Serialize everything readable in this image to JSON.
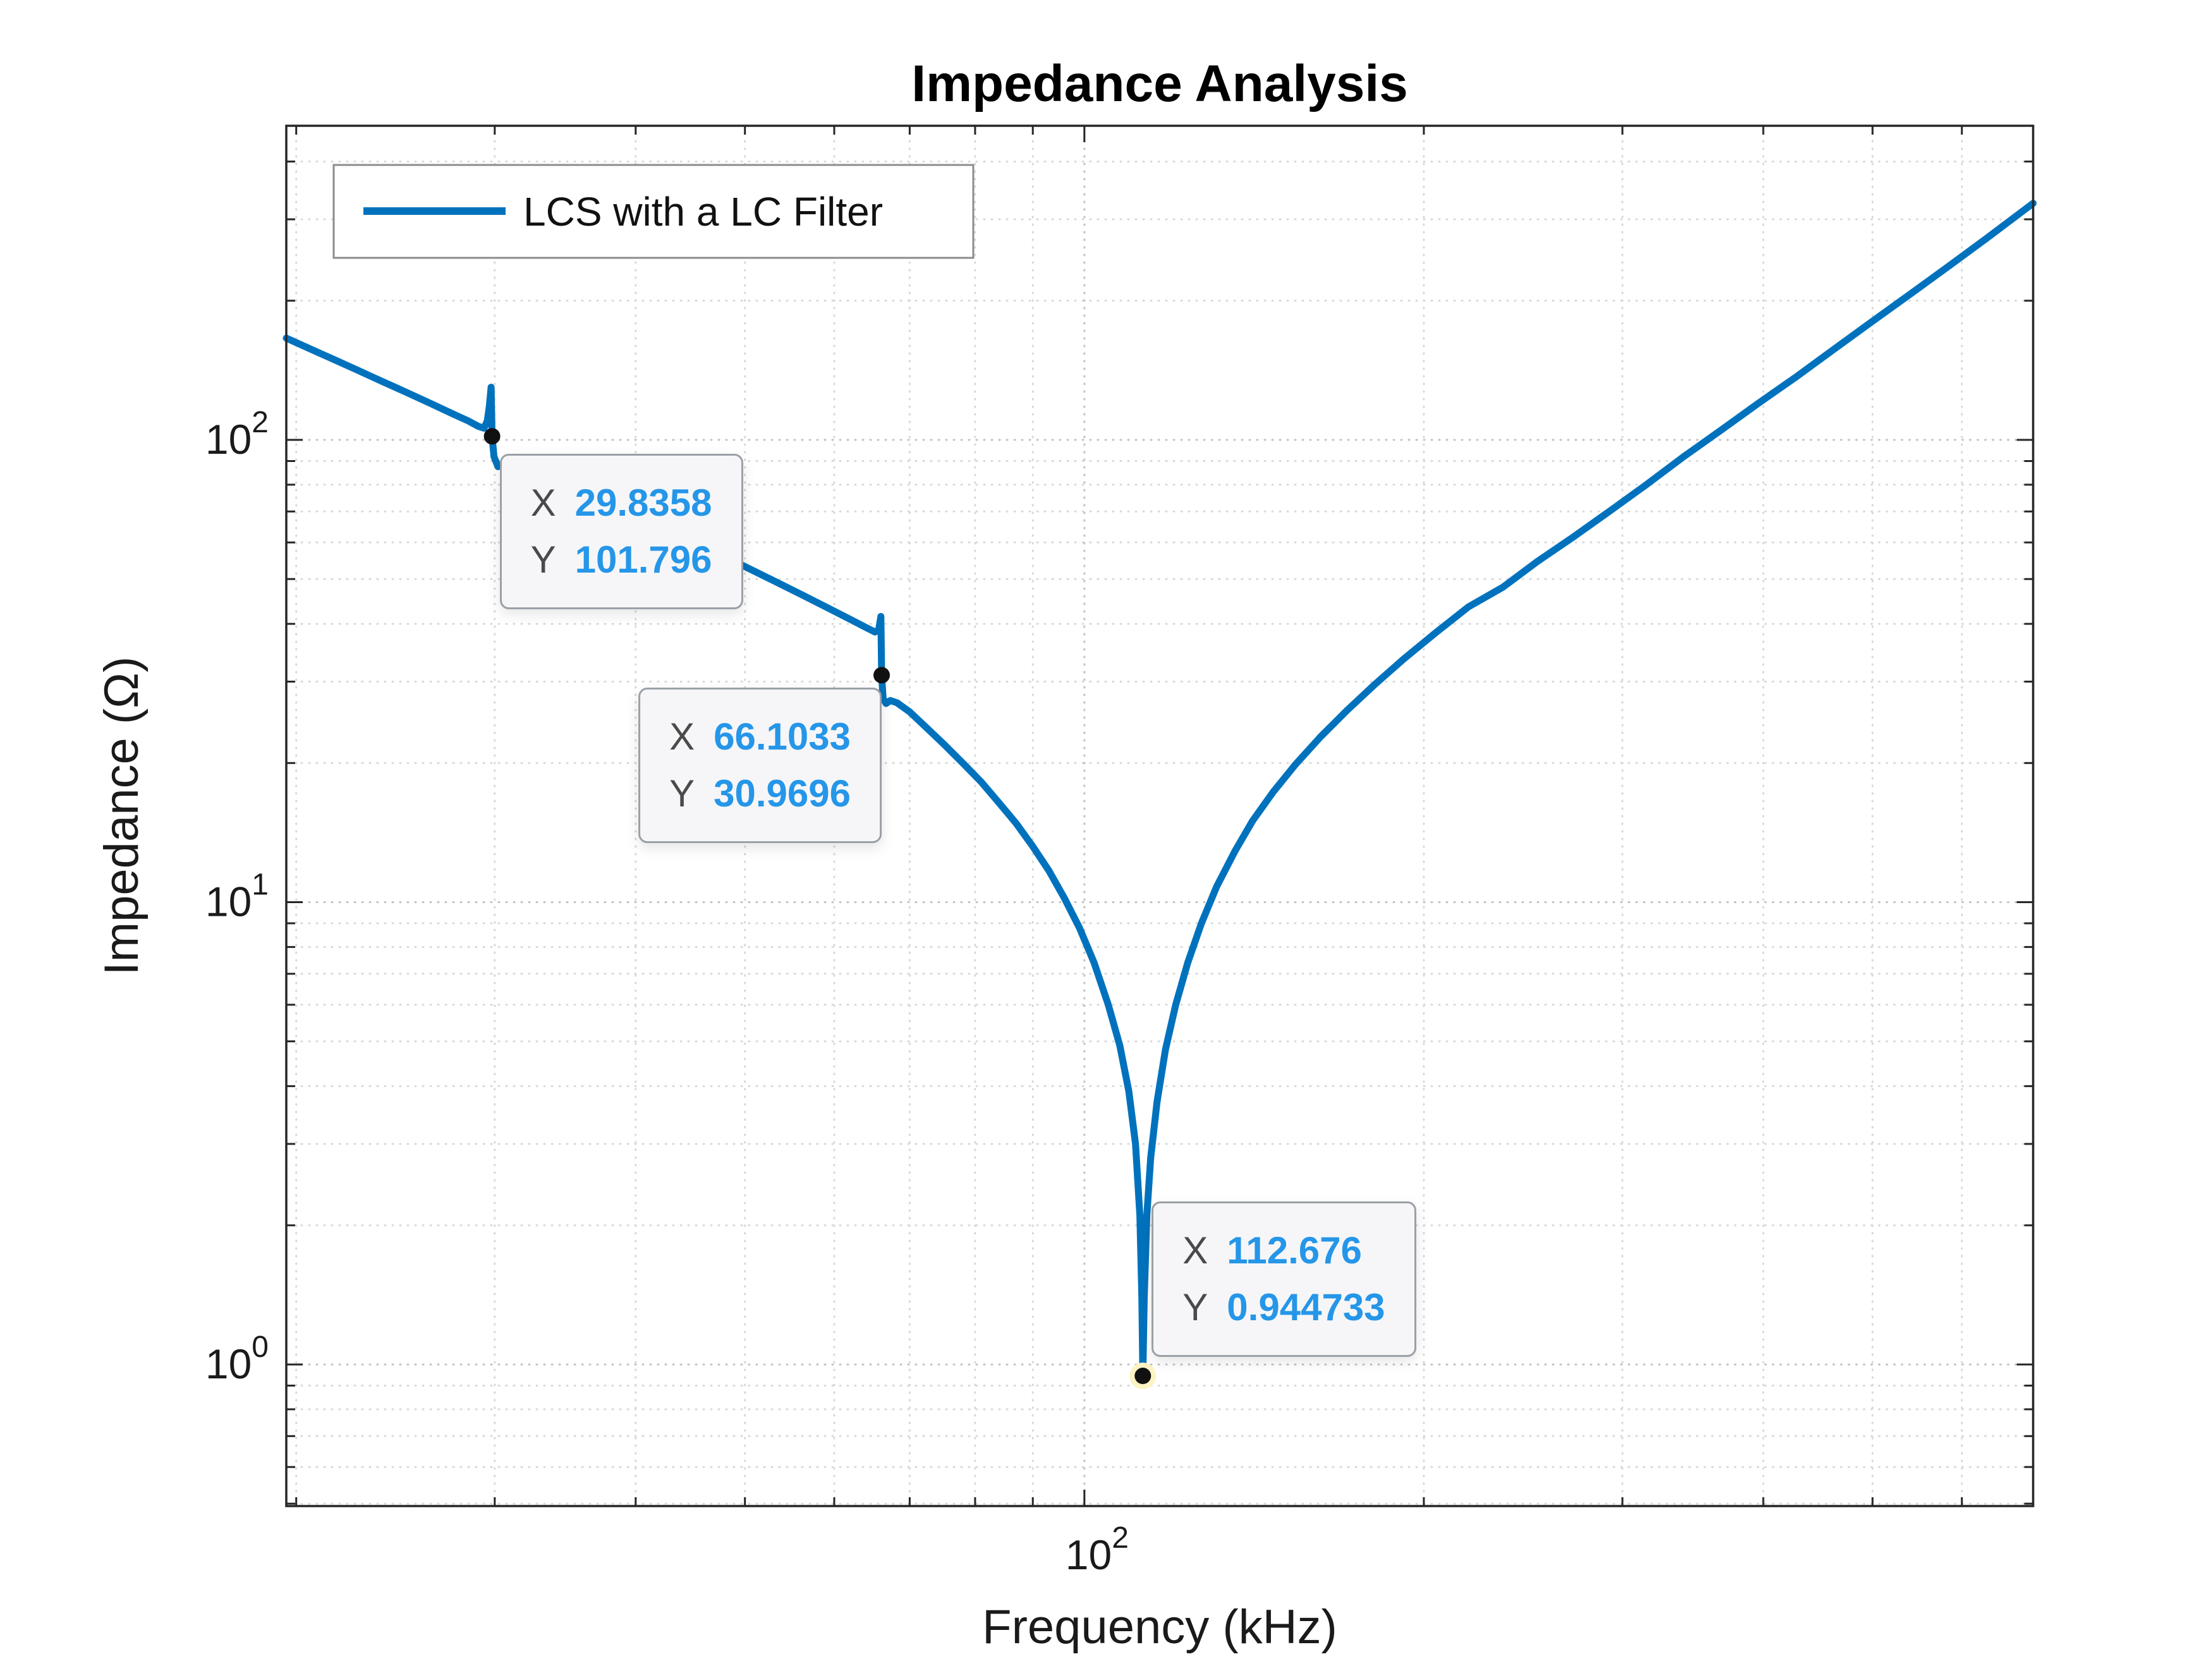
{
  "chart_data": {
    "type": "line",
    "title": "Impedance Analysis",
    "xlabel": "Frequency (kHz)",
    "ylabel": "Impedance (Ω)",
    "x_scale": "log",
    "y_scale": "log",
    "xlim": [
      19.6,
      694
    ],
    "ylim": [
      0.494,
      478
    ],
    "grid": true,
    "minor_grid": true,
    "legend": {
      "position": "northwest"
    },
    "colors": {
      "line": "#0072BD",
      "datatip_value": "#2596e8",
      "marker": "#111111"
    },
    "x_axis": {
      "label": "Frequency (kHz)",
      "major_ticks": [
        100
      ],
      "minor_ticks": [
        20,
        30,
        40,
        50,
        60,
        70,
        80,
        90,
        200,
        300,
        400,
        500,
        600
      ],
      "tick_labels": [
        {
          "value": 100,
          "base": "10",
          "exp": "2"
        }
      ]
    },
    "y_axis": {
      "label": "Impedance (Ω)",
      "major_ticks": [
        1,
        10,
        100
      ],
      "minor_ticks": [
        0.5,
        0.6,
        0.7,
        0.8,
        0.9,
        2,
        3,
        4,
        5,
        6,
        7,
        8,
        9,
        20,
        30,
        40,
        50,
        60,
        70,
        80,
        90,
        200,
        300,
        400
      ],
      "tick_labels": [
        {
          "value": 100,
          "base": "10",
          "exp": "2"
        },
        {
          "value": 10,
          "base": "10",
          "exp": "1"
        },
        {
          "value": 1,
          "base": "10",
          "exp": "0"
        }
      ]
    },
    "series": [
      {
        "name": "LCS with a LC Filter",
        "color": "#0072BD",
        "points": [
          [
            19.6,
            166
          ],
          [
            20.5,
            158
          ],
          [
            21.5,
            150
          ],
          [
            22.6,
            142
          ],
          [
            23.8,
            134
          ],
          [
            25.0,
            127
          ],
          [
            26.3,
            120
          ],
          [
            27.5,
            114
          ],
          [
            28.4,
            110
          ],
          [
            29.0,
            107
          ],
          [
            29.35,
            106
          ],
          [
            29.55,
            110
          ],
          [
            29.68,
            119
          ],
          [
            29.78,
            130
          ],
          [
            29.8358,
            101.796
          ],
          [
            29.95,
            92
          ],
          [
            30.2,
            87.5
          ],
          [
            30.6,
            89
          ],
          [
            31.2,
            89.5
          ],
          [
            32.0,
            87.5
          ],
          [
            33.5,
            83.5
          ],
          [
            35.5,
            78.5
          ],
          [
            38,
            73
          ],
          [
            41,
            67
          ],
          [
            44,
            61.8
          ],
          [
            47,
            57.2
          ],
          [
            50,
            53.2
          ],
          [
            53,
            49.6
          ],
          [
            56,
            46.4
          ],
          [
            59,
            43.5
          ],
          [
            62,
            40.9
          ],
          [
            64,
            39.3
          ],
          [
            65.2,
            38.4
          ],
          [
            65.7,
            38.8
          ],
          [
            66.0,
            41.5
          ],
          [
            66.1033,
            30.9696
          ],
          [
            66.3,
            27.6
          ],
          [
            66.7,
            26.9
          ],
          [
            67.3,
            27.3
          ],
          [
            68.2,
            27.0
          ],
          [
            70,
            25.8
          ],
          [
            72.5,
            23.8
          ],
          [
            75,
            22.0
          ],
          [
            78,
            20.0
          ],
          [
            81,
            18.2
          ],
          [
            84,
            16.4
          ],
          [
            87,
            14.8
          ],
          [
            90,
            13.2
          ],
          [
            93,
            11.7
          ],
          [
            96,
            10.2
          ],
          [
            99,
            8.8
          ],
          [
            102,
            7.4
          ],
          [
            105,
            6.0
          ],
          [
            107.5,
            4.9
          ],
          [
            109.5,
            3.9
          ],
          [
            111,
            3.0
          ],
          [
            112,
            2.1
          ],
          [
            112.45,
            1.4
          ],
          [
            112.676,
            0.944733
          ],
          [
            113.0,
            1.4
          ],
          [
            113.6,
            2.1
          ],
          [
            114.5,
            2.8
          ],
          [
            116,
            3.7
          ],
          [
            118,
            4.8
          ],
          [
            120.5,
            6.0
          ],
          [
            123.5,
            7.4
          ],
          [
            127,
            9.0
          ],
          [
            131,
            10.8
          ],
          [
            136,
            12.9
          ],
          [
            141,
            15.0
          ],
          [
            147,
            17.3
          ],
          [
            154,
            19.9
          ],
          [
            162,
            22.8
          ],
          [
            171,
            26.0
          ],
          [
            181,
            29.6
          ],
          [
            192,
            33.6
          ],
          [
            205,
            38.3
          ],
          [
            219,
            43.5
          ],
          [
            235,
            48
          ],
          [
            252,
            54.5
          ],
          [
            271,
            61.5
          ],
          [
            292,
            70
          ],
          [
            315,
            80
          ],
          [
            340,
            92
          ],
          [
            367,
            105
          ],
          [
            396,
            120
          ],
          [
            428,
            137
          ],
          [
            462,
            157
          ],
          [
            499,
            180
          ],
          [
            539,
            206
          ],
          [
            582,
            236
          ],
          [
            630,
            272
          ],
          [
            694,
            325
          ]
        ]
      }
    ],
    "datatips": [
      {
        "x": 29.8358,
        "y": 101.796,
        "x_label": "X",
        "x_text": "29.8358",
        "y_label": "Y",
        "y_text": "101.796",
        "placement": "below-right"
      },
      {
        "x": 66.1033,
        "y": 30.9696,
        "x_label": "X",
        "x_text": "66.1033",
        "y_label": "Y",
        "y_text": "30.9696",
        "placement": "below-left"
      },
      {
        "x": 112.676,
        "y": 0.944733,
        "x_label": "X",
        "x_text": "112.676",
        "y_label": "Y",
        "y_text": "0.944733",
        "placement": "above-right"
      }
    ]
  }
}
